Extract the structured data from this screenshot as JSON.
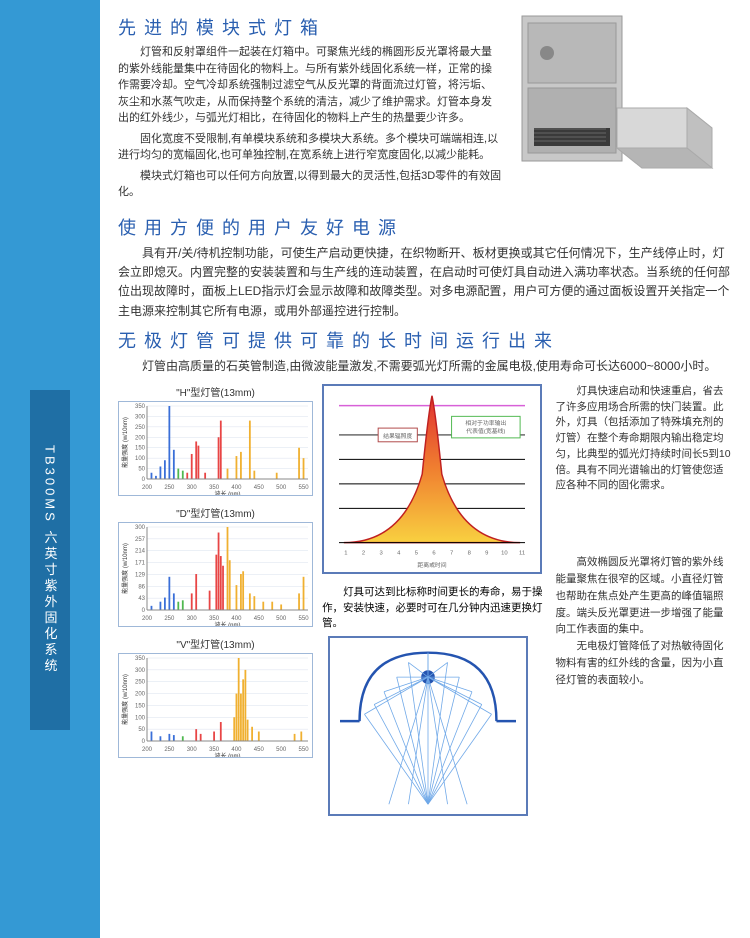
{
  "sidebar": {
    "label": "TB300MS 六英寸紫外固化系统"
  },
  "sec1": {
    "title": "先进的模块式灯箱",
    "p1": "灯管和反射罩组件一起装在灯箱中。可聚焦光线的椭圆形反光罩将最大量的紫外线能量集中在待固化的物料上。与所有紫外线固化系统一样，正常的操作需要冷却。空气冷却系统强制过滤空气从反光罩的背面流过灯管，将污垢、灰尘和水蒸气吹走，从而保持整个系统的清洁，减少了维护需求。灯管本身发出的红外线少，与弧光灯相比，在待固化的物料上产生的热量要少许多。",
    "p2": "固化宽度不受限制,有单模块系统和多模块大系统。多个模块可端端相连,以进行均匀的宽幅固化,也可单独控制,在宽系统上进行窄宽度固化,以减少能耗。",
    "p3": "模块式灯箱也可以任何方向放置,以得到最大的灵活性,包括3D零件的有效固化。"
  },
  "sec2": {
    "title": "使用方便的用户友好电源",
    "p1": "具有开/关/待机控制功能，可使生产启动更快捷，在织物断开、板材更换或其它任何情况下，生产线停止时，灯会立即熄灭。内置完整的安装装置和与生产线的连动装置，在启动时可使灯具自动进入满功率状态。当系统的任何部位出现故障时，面板上LED指示灯会显示故障和故障类型。对多电源配置，用户可方便的通过面板设置开关指定一个主电源来控制其它所有电源，或用外部遥控进行控制。"
  },
  "sec3": {
    "title": "无极灯管可提供可靠的长时间运行出来",
    "p1": "灯管由高质量的石英管制造,由微波能量激发,不需要弧光灯所需的金属电极,使用寿命可长达6000~8000小时。"
  },
  "charts": {
    "h": {
      "title": "\"H\"型灯管(13mm)",
      "xlabel": "波长 (nm)",
      "ylabel": "能量强度 (w/10nm)",
      "xticks": [
        200,
        250,
        300,
        350,
        400,
        450,
        500,
        550
      ],
      "ymax": 350,
      "bars": [
        {
          "x": 210,
          "v": 30,
          "c": "#3a6fd8"
        },
        {
          "x": 220,
          "v": 15,
          "c": "#3a6fd8"
        },
        {
          "x": 230,
          "v": 60,
          "c": "#3a6fd8"
        },
        {
          "x": 240,
          "v": 90,
          "c": "#3a6fd8"
        },
        {
          "x": 250,
          "v": 350,
          "c": "#3a6fd8"
        },
        {
          "x": 260,
          "v": 140,
          "c": "#3a6fd8"
        },
        {
          "x": 270,
          "v": 50,
          "c": "#4fb84f"
        },
        {
          "x": 280,
          "v": 40,
          "c": "#4fb84f"
        },
        {
          "x": 290,
          "v": 30,
          "c": "#e84545"
        },
        {
          "x": 300,
          "v": 120,
          "c": "#e84545"
        },
        {
          "x": 310,
          "v": 180,
          "c": "#e84545"
        },
        {
          "x": 315,
          "v": 160,
          "c": "#e84545"
        },
        {
          "x": 330,
          "v": 30,
          "c": "#e84545"
        },
        {
          "x": 360,
          "v": 200,
          "c": "#e84545"
        },
        {
          "x": 365,
          "v": 280,
          "c": "#e84545"
        },
        {
          "x": 380,
          "v": 50,
          "c": "#f0b030"
        },
        {
          "x": 400,
          "v": 110,
          "c": "#f0b030"
        },
        {
          "x": 410,
          "v": 130,
          "c": "#f0b030"
        },
        {
          "x": 430,
          "v": 280,
          "c": "#f0b030"
        },
        {
          "x": 440,
          "v": 40,
          "c": "#f0b030"
        },
        {
          "x": 490,
          "v": 30,
          "c": "#f0b030"
        },
        {
          "x": 540,
          "v": 150,
          "c": "#f0b030"
        },
        {
          "x": 550,
          "v": 100,
          "c": "#f0b030"
        }
      ]
    },
    "d": {
      "title": "\"D\"型灯管(13mm)",
      "xlabel": "波长 (nm)",
      "ylabel": "能量强度 (w/10nm)",
      "xticks": [
        200,
        250,
        300,
        350,
        400,
        450,
        500,
        550
      ],
      "ymax": 300,
      "bars": [
        {
          "x": 210,
          "v": 15,
          "c": "#3a6fd8"
        },
        {
          "x": 230,
          "v": 30,
          "c": "#3a6fd8"
        },
        {
          "x": 240,
          "v": 45,
          "c": "#3a6fd8"
        },
        {
          "x": 250,
          "v": 120,
          "c": "#3a6fd8"
        },
        {
          "x": 260,
          "v": 60,
          "c": "#3a6fd8"
        },
        {
          "x": 270,
          "v": 30,
          "c": "#4fb84f"
        },
        {
          "x": 280,
          "v": 35,
          "c": "#4fb84f"
        },
        {
          "x": 300,
          "v": 60,
          "c": "#e84545"
        },
        {
          "x": 310,
          "v": 130,
          "c": "#e84545"
        },
        {
          "x": 340,
          "v": 70,
          "c": "#e84545"
        },
        {
          "x": 355,
          "v": 200,
          "c": "#e84545"
        },
        {
          "x": 360,
          "v": 280,
          "c": "#e84545"
        },
        {
          "x": 365,
          "v": 195,
          "c": "#e84545"
        },
        {
          "x": 370,
          "v": 160,
          "c": "#e84545"
        },
        {
          "x": 380,
          "v": 300,
          "c": "#f0b030"
        },
        {
          "x": 385,
          "v": 180,
          "c": "#f0b030"
        },
        {
          "x": 400,
          "v": 90,
          "c": "#f0b030"
        },
        {
          "x": 410,
          "v": 130,
          "c": "#f0b030"
        },
        {
          "x": 415,
          "v": 140,
          "c": "#f0b030"
        },
        {
          "x": 430,
          "v": 60,
          "c": "#f0b030"
        },
        {
          "x": 440,
          "v": 50,
          "c": "#f0b030"
        },
        {
          "x": 460,
          "v": 30,
          "c": "#f0b030"
        },
        {
          "x": 480,
          "v": 30,
          "c": "#f0b030"
        },
        {
          "x": 500,
          "v": 20,
          "c": "#f0b030"
        },
        {
          "x": 540,
          "v": 60,
          "c": "#f0b030"
        },
        {
          "x": 550,
          "v": 120,
          "c": "#f0b030"
        }
      ]
    },
    "v": {
      "title": "\"V\"型灯管(13mm)",
      "xlabel": "波长 (nm)",
      "ylabel": "能量强度 (w/10nm)",
      "xticks": [
        200,
        250,
        300,
        350,
        400,
        450,
        500,
        550
      ],
      "ymax": 350,
      "bars": [
        {
          "x": 210,
          "v": 40,
          "c": "#3a6fd8"
        },
        {
          "x": 230,
          "v": 20,
          "c": "#3a6fd8"
        },
        {
          "x": 250,
          "v": 30,
          "c": "#3a6fd8"
        },
        {
          "x": 260,
          "v": 25,
          "c": "#3a6fd8"
        },
        {
          "x": 280,
          "v": 20,
          "c": "#4fb84f"
        },
        {
          "x": 310,
          "v": 50,
          "c": "#e84545"
        },
        {
          "x": 320,
          "v": 30,
          "c": "#e84545"
        },
        {
          "x": 350,
          "v": 40,
          "c": "#e84545"
        },
        {
          "x": 365,
          "v": 80,
          "c": "#e84545"
        },
        {
          "x": 395,
          "v": 100,
          "c": "#f0b030"
        },
        {
          "x": 400,
          "v": 200,
          "c": "#f0b030"
        },
        {
          "x": 405,
          "v": 350,
          "c": "#f0b030"
        },
        {
          "x": 410,
          "v": 200,
          "c": "#f0b030"
        },
        {
          "x": 415,
          "v": 260,
          "c": "#f0b030"
        },
        {
          "x": 420,
          "v": 300,
          "c": "#f0b030"
        },
        {
          "x": 425,
          "v": 90,
          "c": "#f0b030"
        },
        {
          "x": 435,
          "v": 60,
          "c": "#f0b030"
        },
        {
          "x": 450,
          "v": 40,
          "c": "#f0b030"
        },
        {
          "x": 530,
          "v": 30,
          "c": "#f0b030"
        },
        {
          "x": 545,
          "v": 40,
          "c": "#f0b030"
        }
      ]
    }
  },
  "peak": {
    "caption_top": "",
    "xlabel": "距离或时间",
    "xticks": [
      1,
      2,
      3,
      4,
      5,
      6,
      7,
      8,
      9,
      10,
      11
    ],
    "box_label1": "结果辐照度",
    "box_label2": "相对于功率输出代表值(较宽着色基线)",
    "caption": "灯具可达到比标称时间更长的寿命，易于操作，安装快速，必要时可在几分钟内迅速更换灯管。"
  },
  "right_text": "灯具快速启动和快速重启，省去了许多应用场合所需的快门装置。此外，灯具（包括添加了特殊填充剂的灯管）在整个寿命期限内输出稳定均匀，比典型的弧光灯持续时间长5到10倍。具有不同光谱输出的灯管使您适应各种不同的固化需求。",
  "bottom": {
    "p1": "高效椭圆反光罩将灯管的紫外线能量聚焦在很窄的区域。小直径灯管也帮助在焦点处产生更高的峰值辐照度。端头反光罩更进一步增强了能量向工作表面的集中。",
    "p2": "无电极灯管降低了对热敏待固化物料有害的红外线的含量，因为小直径灯管的表面较小。"
  }
}
